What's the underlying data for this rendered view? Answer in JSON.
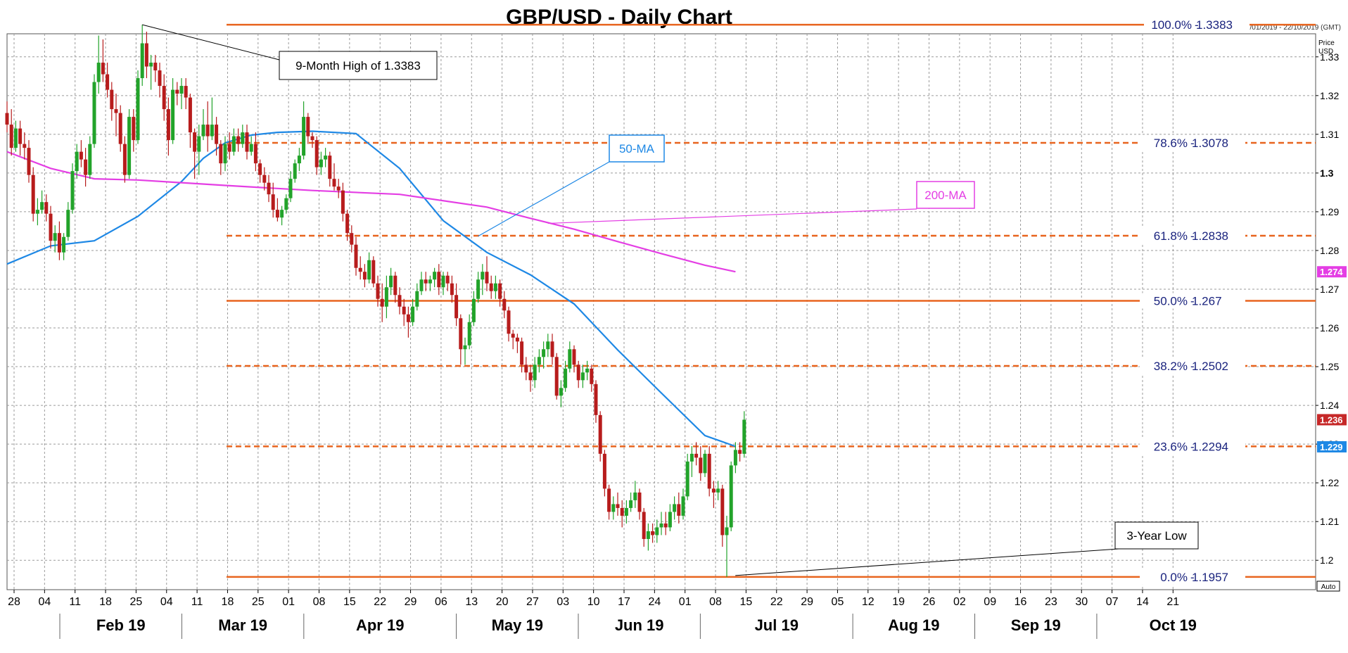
{
  "chart_data": {
    "type": "candlestick",
    "title": "GBP/USD - Daily Chart",
    "date_range": "28/01/2019 - 22/10/2019 (GMT)",
    "price_axis_label": "Price",
    "price_axis_unit": "USD",
    "auto_label": "Auto",
    "ylim": [
      1.1935,
      1.3425
    ],
    "grid": true,
    "y_ticks": [
      1.2,
      1.21,
      1.22,
      1.23,
      1.24,
      1.25,
      1.26,
      1.27,
      1.28,
      1.29,
      1.3,
      1.31,
      1.32,
      1.33
    ],
    "y_tick_labels": [
      "1.2",
      "1.21",
      "1.22",
      "1.23",
      "1.24",
      "1.25",
      "1.26",
      "1.27",
      "1.28",
      "1.29",
      "1.3",
      "1.31",
      "1.32",
      "1.33"
    ],
    "x_ticks": [
      "28",
      "04",
      "11",
      "18",
      "25",
      "04",
      "11",
      "18",
      "25",
      "01",
      "08",
      "15",
      "22",
      "29",
      "06",
      "13",
      "20",
      "27",
      "03",
      "10",
      "17",
      "24",
      "01",
      "08",
      "15",
      "22",
      "29",
      "05",
      "12",
      "19",
      "26",
      "02",
      "09",
      "16",
      "23",
      "30",
      "07",
      "14",
      "21"
    ],
    "months": [
      "Feb 19",
      "Mar 19",
      "Apr 19",
      "May 19",
      "Jun 19",
      "Jul 19",
      "Aug 19",
      "Sep 19",
      "Oct 19"
    ],
    "bull_color": "#22a32a",
    "bear_color": "#b71c1c",
    "fib_levels": [
      {
        "label": "100.0%",
        "value_label": "1.3383",
        "value": 1.3383,
        "style": "solid"
      },
      {
        "label": "78.6%",
        "value_label": "1.3078",
        "value": 1.3078,
        "style": "dashed"
      },
      {
        "label": "61.8%",
        "value_label": "1.2838",
        "value": 1.2838,
        "style": "dashed"
      },
      {
        "label": "50.0%",
        "value_label": "1.267",
        "value": 1.267,
        "style": "solid"
      },
      {
        "label": "38.2%",
        "value_label": "1.2502",
        "value": 1.2502,
        "style": "dashed"
      },
      {
        "label": "23.6%",
        "value_label": "1.2294",
        "value": 1.2294,
        "style": "dashed"
      },
      {
        "label": "0.0%",
        "value_label": "1.1957",
        "value": 1.1957,
        "style": "solid"
      }
    ],
    "fib_color": "#e8641e",
    "price_tags": [
      {
        "text": "1.274",
        "value": 1.2745,
        "color": "#e43ee4"
      },
      {
        "text": "1.236",
        "value": 1.2363,
        "color": "#c62828"
      },
      {
        "text": "1.229",
        "value": 1.2293,
        "color": "#1e88e5"
      }
    ],
    "annotations": [
      {
        "text": "9-Month High of 1.3383",
        "border": "#000000",
        "color": "#000000"
      },
      {
        "text": "3-Year Low",
        "border": "#000000",
        "color": "#000000"
      },
      {
        "text": "50-MA",
        "border": "#1e88e5",
        "color": "#1e88e5"
      },
      {
        "text": "200-MA",
        "border": "#e43ee4",
        "color": "#e43ee4"
      }
    ],
    "series": [
      {
        "name": "50-MA",
        "color": "#1e88e5",
        "x": [
          0,
          10,
          20,
          30,
          40,
          45,
          50,
          56,
          62,
          70,
          80,
          90,
          100,
          110,
          120,
          130,
          140,
          150,
          160,
          167
        ],
        "values": [
          1.2765,
          1.2812,
          1.2825,
          1.2888,
          1.2978,
          1.3038,
          1.3078,
          1.3098,
          1.3105,
          1.3108,
          1.3102,
          1.3012,
          1.2877,
          1.2795,
          1.2737,
          1.2662,
          1.2543,
          1.2432,
          1.2322,
          1.2294
        ]
      },
      {
        "name": "200-MA",
        "color": "#e43ee4",
        "x": [
          0,
          10,
          20,
          30,
          50,
          70,
          90,
          110,
          120,
          130,
          140,
          150,
          160,
          167
        ],
        "values": [
          1.3055,
          1.3012,
          1.2985,
          1.2982,
          1.2968,
          1.2955,
          1.2945,
          1.2912,
          1.2883,
          1.2855,
          1.2823,
          1.2792,
          1.2762,
          1.2745
        ]
      }
    ],
    "candles": [
      [
        1.3155,
        1.3185,
        1.3105,
        1.3125
      ],
      [
        1.3125,
        1.3165,
        1.3045,
        1.3065
      ],
      [
        1.3065,
        1.3135,
        1.3055,
        1.3115
      ],
      [
        1.3115,
        1.3135,
        1.3045,
        1.3075
      ],
      [
        1.3075,
        1.3105,
        1.3035,
        1.3065
      ],
      [
        1.3065,
        1.3085,
        1.2975,
        1.2995
      ],
      [
        1.2995,
        1.3015,
        1.2875,
        1.2895
      ],
      [
        1.2895,
        1.2935,
        1.2865,
        1.2905
      ],
      [
        1.2905,
        1.2955,
        1.2895,
        1.2925
      ],
      [
        1.2925,
        1.2945,
        1.2875,
        1.2895
      ],
      [
        1.2895,
        1.2915,
        1.2805,
        1.2825
      ],
      [
        1.2825,
        1.2865,
        1.2795,
        1.2845
      ],
      [
        1.2845,
        1.2875,
        1.2775,
        1.2795
      ],
      [
        1.2795,
        1.2845,
        1.2775,
        1.2835
      ],
      [
        1.2835,
        1.2925,
        1.2825,
        1.2905
      ],
      [
        1.2905,
        1.3025,
        1.2895,
        1.3005
      ],
      [
        1.3005,
        1.3075,
        1.2985,
        1.3055
      ],
      [
        1.3055,
        1.3085,
        1.3015,
        1.3035
      ],
      [
        1.3035,
        1.3065,
        1.2965,
        1.2995
      ],
      [
        1.2995,
        1.3095,
        1.2985,
        1.3075
      ],
      [
        1.3075,
        1.3255,
        1.3065,
        1.3235
      ],
      [
        1.3235,
        1.3355,
        1.3205,
        1.3285
      ],
      [
        1.3285,
        1.3345,
        1.3235,
        1.3255
      ],
      [
        1.3255,
        1.3285,
        1.3195,
        1.3215
      ],
      [
        1.3215,
        1.3235,
        1.3135,
        1.3165
      ],
      [
        1.3165,
        1.3205,
        1.3095,
        1.3155
      ],
      [
        1.3155,
        1.3175,
        1.3055,
        1.3075
      ],
      [
        1.3075,
        1.3095,
        1.2975,
        1.2995
      ],
      [
        1.2995,
        1.3165,
        1.2985,
        1.3145
      ],
      [
        1.3145,
        1.3165,
        1.3055,
        1.3085
      ],
      [
        1.3085,
        1.3265,
        1.3075,
        1.3245
      ],
      [
        1.3245,
        1.3383,
        1.3225,
        1.3335
      ],
      [
        1.3335,
        1.3365,
        1.3245,
        1.3275
      ],
      [
        1.3275,
        1.3305,
        1.3215,
        1.3285
      ],
      [
        1.3285,
        1.3305,
        1.3235,
        1.3265
      ],
      [
        1.3265,
        1.3285,
        1.3195,
        1.3225
      ],
      [
        1.3225,
        1.3255,
        1.3135,
        1.3165
      ],
      [
        1.3165,
        1.3195,
        1.3045,
        1.3085
      ],
      [
        1.3085,
        1.3245,
        1.3075,
        1.3215
      ],
      [
        1.3215,
        1.3235,
        1.3175,
        1.3205
      ],
      [
        1.3205,
        1.3245,
        1.3165,
        1.3225
      ],
      [
        1.3225,
        1.3245,
        1.3165,
        1.3195
      ],
      [
        1.3195,
        1.3205,
        1.3065,
        1.3105
      ],
      [
        1.3105,
        1.3115,
        1.2985,
        1.3055
      ],
      [
        1.3055,
        1.3125,
        1.2995,
        1.3095
      ],
      [
        1.3095,
        1.3165,
        1.3085,
        1.3125
      ],
      [
        1.3125,
        1.3185,
        1.3055,
        1.3095
      ],
      [
        1.3095,
        1.3195,
        1.3085,
        1.3125
      ],
      [
        1.3125,
        1.3145,
        1.3045,
        1.3075
      ],
      [
        1.3075,
        1.3085,
        1.2995,
        1.3025
      ],
      [
        1.3025,
        1.3095,
        1.3005,
        1.3075
      ],
      [
        1.3075,
        1.3105,
        1.3035,
        1.3055
      ],
      [
        1.3055,
        1.3115,
        1.3045,
        1.3095
      ],
      [
        1.3095,
        1.3115,
        1.3055,
        1.3075
      ],
      [
        1.3075,
        1.3125,
        1.3065,
        1.3105
      ],
      [
        1.3105,
        1.3125,
        1.3035,
        1.3055
      ],
      [
        1.3055,
        1.3095,
        1.3045,
        1.3075
      ],
      [
        1.3075,
        1.3105,
        1.3005,
        1.3025
      ],
      [
        1.3025,
        1.3035,
        1.2975,
        1.2995
      ],
      [
        1.2995,
        1.3015,
        1.2955,
        1.2975
      ],
      [
        1.2975,
        1.2995,
        1.2925,
        1.2945
      ],
      [
        1.2945,
        1.2975,
        1.2885,
        1.2905
      ],
      [
        1.2905,
        1.2935,
        1.2875,
        1.2885
      ],
      [
        1.2885,
        1.2915,
        1.2865,
        1.2905
      ],
      [
        1.2905,
        1.2945,
        1.2895,
        1.2935
      ],
      [
        1.2935,
        1.3005,
        1.2925,
        1.2985
      ],
      [
        1.2985,
        1.3035,
        1.2975,
        1.3025
      ],
      [
        1.3025,
        1.3065,
        1.3005,
        1.3045
      ],
      [
        1.3045,
        1.3185,
        1.3035,
        1.3145
      ],
      [
        1.3145,
        1.3155,
        1.3075,
        1.3095
      ],
      [
        1.3095,
        1.3105,
        1.3065,
        1.3085
      ],
      [
        1.3085,
        1.3095,
        1.2995,
        1.3015
      ],
      [
        1.3015,
        1.3055,
        1.2995,
        1.3035
      ],
      [
        1.3035,
        1.3065,
        1.3015,
        1.3045
      ],
      [
        1.3045,
        1.3055,
        1.2965,
        1.2985
      ],
      [
        1.2985,
        1.3025,
        1.2955,
        1.2965
      ],
      [
        1.2965,
        1.2985,
        1.2935,
        1.2955
      ],
      [
        1.2955,
        1.2975,
        1.2875,
        1.2895
      ],
      [
        1.2895,
        1.2905,
        1.2825,
        1.2845
      ],
      [
        1.2845,
        1.2865,
        1.2795,
        1.2815
      ],
      [
        1.2815,
        1.2835,
        1.2735,
        1.2755
      ],
      [
        1.2755,
        1.2785,
        1.2725,
        1.2745
      ],
      [
        1.2745,
        1.2765,
        1.2705,
        1.2725
      ],
      [
        1.2725,
        1.2795,
        1.2715,
        1.2775
      ],
      [
        1.2775,
        1.2785,
        1.2705,
        1.2715
      ],
      [
        1.2715,
        1.2735,
        1.2655,
        1.2675
      ],
      [
        1.2675,
        1.2715,
        1.2615,
        1.2655
      ],
      [
        1.2655,
        1.2735,
        1.2625,
        1.2705
      ],
      [
        1.2705,
        1.2755,
        1.2685,
        1.2735
      ],
      [
        1.2735,
        1.2745,
        1.2665,
        1.2685
      ],
      [
        1.2685,
        1.2705,
        1.2635,
        1.2655
      ],
      [
        1.2655,
        1.2675,
        1.2605,
        1.2635
      ],
      [
        1.2635,
        1.2655,
        1.2575,
        1.2615
      ],
      [
        1.2615,
        1.2675,
        1.2605,
        1.2655
      ],
      [
        1.2655,
        1.2715,
        1.2645,
        1.2695
      ],
      [
        1.2695,
        1.2745,
        1.2685,
        1.2725
      ],
      [
        1.2725,
        1.2745,
        1.2695,
        1.2715
      ],
      [
        1.2715,
        1.2735,
        1.2695,
        1.2725
      ],
      [
        1.2725,
        1.2755,
        1.2705,
        1.2745
      ],
      [
        1.2745,
        1.2765,
        1.2685,
        1.2705
      ],
      [
        1.2705,
        1.2745,
        1.2685,
        1.2735
      ],
      [
        1.2735,
        1.2745,
        1.2695,
        1.2715
      ],
      [
        1.2715,
        1.2735,
        1.2665,
        1.2685
      ],
      [
        1.2685,
        1.2715,
        1.2605,
        1.2625
      ],
      [
        1.2625,
        1.2635,
        1.2505,
        1.2545
      ],
      [
        1.2545,
        1.2575,
        1.2505,
        1.2555
      ],
      [
        1.2555,
        1.2635,
        1.2545,
        1.2615
      ],
      [
        1.2615,
        1.2695,
        1.2605,
        1.2675
      ],
      [
        1.2675,
        1.2745,
        1.2665,
        1.2725
      ],
      [
        1.2725,
        1.2765,
        1.2685,
        1.2745
      ],
      [
        1.2745,
        1.2785,
        1.2695,
        1.2715
      ],
      [
        1.2715,
        1.2735,
        1.2675,
        1.2695
      ],
      [
        1.2695,
        1.2735,
        1.2675,
        1.2715
      ],
      [
        1.2715,
        1.2725,
        1.2655,
        1.2675
      ],
      [
        1.2675,
        1.2695,
        1.2625,
        1.2645
      ],
      [
        1.2645,
        1.2655,
        1.2565,
        1.2585
      ],
      [
        1.2585,
        1.2595,
        1.2545,
        1.2575
      ],
      [
        1.2575,
        1.2585,
        1.2535,
        1.2565
      ],
      [
        1.2565,
        1.2575,
        1.2485,
        1.2505
      ],
      [
        1.2505,
        1.2525,
        1.2465,
        1.2485
      ],
      [
        1.2485,
        1.2505,
        1.2435,
        1.2465
      ],
      [
        1.2465,
        1.2525,
        1.2445,
        1.2505
      ],
      [
        1.2505,
        1.2545,
        1.2485,
        1.2525
      ],
      [
        1.2525,
        1.2565,
        1.2495,
        1.2545
      ],
      [
        1.2545,
        1.2585,
        1.2525,
        1.2565
      ],
      [
        1.2565,
        1.2585,
        1.2505,
        1.2525
      ],
      [
        1.2525,
        1.2535,
        1.2415,
        1.2425
      ],
      [
        1.2425,
        1.2465,
        1.2395,
        1.2445
      ],
      [
        1.2445,
        1.2515,
        1.2435,
        1.2495
      ],
      [
        1.2495,
        1.2565,
        1.2485,
        1.2545
      ],
      [
        1.2545,
        1.2555,
        1.2485,
        1.2505
      ],
      [
        1.2505,
        1.2515,
        1.2445,
        1.2465
      ],
      [
        1.2465,
        1.2505,
        1.2445,
        1.2485
      ],
      [
        1.2485,
        1.2515,
        1.2465,
        1.2495
      ],
      [
        1.2495,
        1.2505,
        1.2435,
        1.2455
      ],
      [
        1.2455,
        1.2465,
        1.2355,
        1.2375
      ],
      [
        1.2375,
        1.2385,
        1.2255,
        1.2275
      ],
      [
        1.2275,
        1.2285,
        1.2165,
        1.2185
      ],
      [
        1.2185,
        1.2195,
        1.2105,
        1.2125
      ],
      [
        1.2125,
        1.2165,
        1.2105,
        1.2145
      ],
      [
        1.2145,
        1.2175,
        1.2115,
        1.2135
      ],
      [
        1.2135,
        1.2155,
        1.2085,
        1.2115
      ],
      [
        1.2115,
        1.2155,
        1.2095,
        1.2135
      ],
      [
        1.2135,
        1.2175,
        1.2125,
        1.2155
      ],
      [
        1.2155,
        1.2205,
        1.2135,
        1.2175
      ],
      [
        1.2175,
        1.2185,
        1.2105,
        1.2125
      ],
      [
        1.2125,
        1.2135,
        1.2035,
        1.2055
      ],
      [
        1.2055,
        1.2095,
        1.2025,
        1.2075
      ],
      [
        1.2075,
        1.2095,
        1.2045,
        1.2065
      ],
      [
        1.2065,
        1.2105,
        1.2045,
        1.2085
      ],
      [
        1.2085,
        1.2125,
        1.2065,
        1.2095
      ],
      [
        1.2095,
        1.2125,
        1.2065,
        1.2085
      ],
      [
        1.2085,
        1.2145,
        1.2075,
        1.2125
      ],
      [
        1.2125,
        1.2165,
        1.2105,
        1.2145
      ],
      [
        1.2145,
        1.2175,
        1.2095,
        1.2115
      ],
      [
        1.2115,
        1.2185,
        1.2105,
        1.2165
      ],
      [
        1.2165,
        1.2275,
        1.2155,
        1.2255
      ],
      [
        1.2255,
        1.2295,
        1.2215,
        1.2275
      ],
      [
        1.2275,
        1.2305,
        1.2245,
        1.2265
      ],
      [
        1.2265,
        1.2295,
        1.2205,
        1.2225
      ],
      [
        1.2225,
        1.2285,
        1.2215,
        1.2275
      ],
      [
        1.2275,
        1.2295,
        1.2165,
        1.2185
      ],
      [
        1.2185,
        1.2205,
        1.2135,
        1.2175
      ],
      [
        1.2175,
        1.2205,
        1.2155,
        1.2185
      ],
      [
        1.2185,
        1.2195,
        1.2035,
        1.2065
      ],
      [
        1.2065,
        1.2115,
        1.1957,
        1.2085
      ],
      [
        1.2085,
        1.2255,
        1.2075,
        1.2245
      ],
      [
        1.2245,
        1.2305,
        1.2225,
        1.2285
      ],
      [
        1.2285,
        1.2305,
        1.2255,
        1.2275
      ],
      [
        1.2275,
        1.2385,
        1.2265,
        1.2363
      ]
    ]
  }
}
